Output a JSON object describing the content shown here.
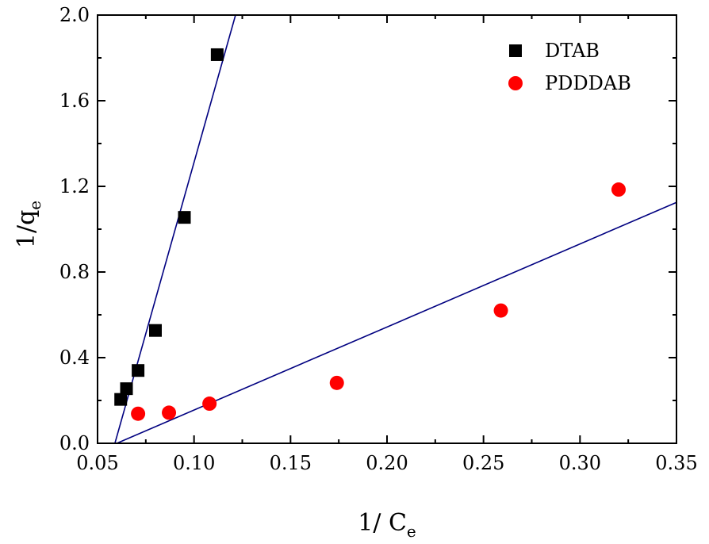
{
  "chart_data": {
    "type": "scatter",
    "title": "",
    "xlabel": {
      "main": "1/ C",
      "sub": "e"
    },
    "ylabel": {
      "main": "1/q",
      "sub": "e"
    },
    "xlim": [
      0.05,
      0.35
    ],
    "ylim": [
      0.0,
      2.0
    ],
    "x_ticks": [
      0.05,
      0.1,
      0.15,
      0.2,
      0.25,
      0.3,
      0.35
    ],
    "x_tick_labels": [
      "0.05",
      "0.10",
      "0.15",
      "0.20",
      "0.25",
      "0.30",
      "0.35"
    ],
    "y_ticks": [
      0.0,
      0.4,
      0.8,
      1.2,
      1.6,
      2.0
    ],
    "y_tick_labels": [
      "0.0",
      "0.4",
      "0.8",
      "1.2",
      "1.6",
      "2.0"
    ],
    "grid": false,
    "legend_position": "top-right",
    "series": [
      {
        "name": "DTAB",
        "marker": "square",
        "color": "#000000",
        "points": [
          {
            "x": 0.062,
            "y": 0.205
          },
          {
            "x": 0.065,
            "y": 0.255
          },
          {
            "x": 0.071,
            "y": 0.34
          },
          {
            "x": 0.08,
            "y": 0.527
          },
          {
            "x": 0.095,
            "y": 1.055
          },
          {
            "x": 0.112,
            "y": 1.815
          }
        ],
        "fit_line": {
          "x": [
            0.059,
            0.1215
          ],
          "y": [
            0.0,
            2.0
          ],
          "color": "#000080"
        }
      },
      {
        "name": "PDDDAB",
        "marker": "circle",
        "color": "#ff0000",
        "points": [
          {
            "x": 0.071,
            "y": 0.138
          },
          {
            "x": 0.087,
            "y": 0.143
          },
          {
            "x": 0.108,
            "y": 0.185
          },
          {
            "x": 0.174,
            "y": 0.282
          },
          {
            "x": 0.259,
            "y": 0.62
          },
          {
            "x": 0.32,
            "y": 1.185
          }
        ],
        "fit_line": {
          "x": [
            0.06,
            0.35
          ],
          "y": [
            0.0,
            1.125
          ],
          "color": "#000080"
        }
      }
    ]
  }
}
